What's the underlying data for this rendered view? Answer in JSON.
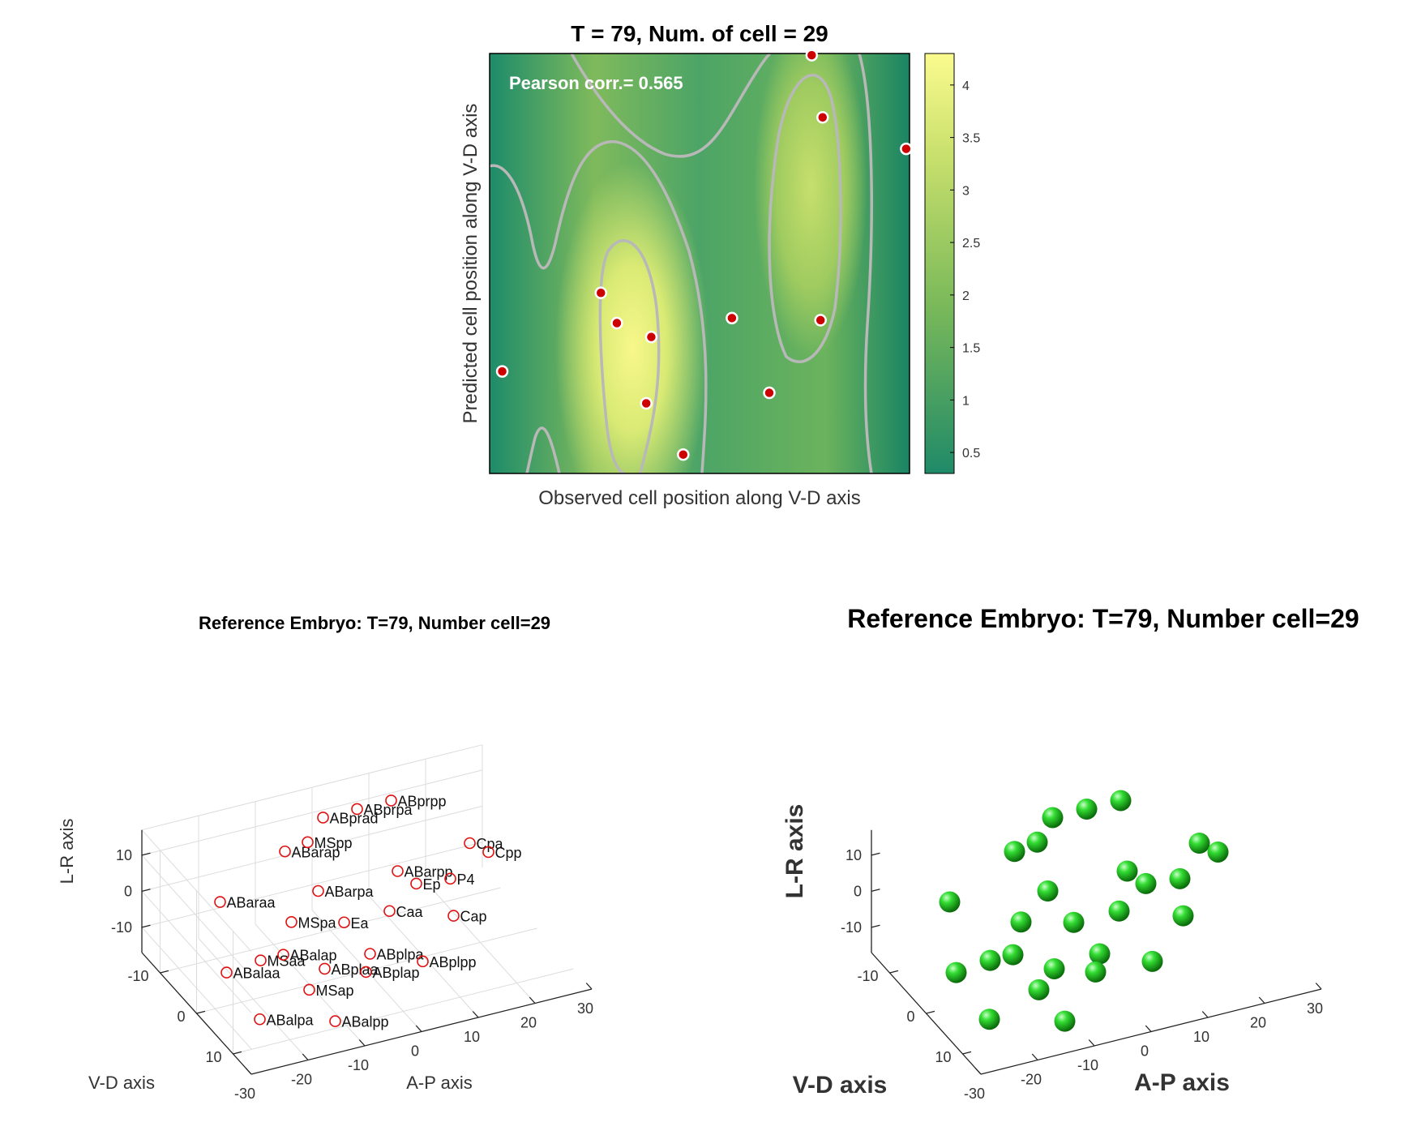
{
  "top_plot": {
    "title": "T = 79, Num. of cell = 29",
    "annotation": "Pearson corr.= 0.565",
    "xlabel": "Observed cell position along V-D axis",
    "ylabel": "Predicted cell position along V-D axis",
    "colorbar_ticks": [
      "0.5",
      "1",
      "1.5",
      "2",
      "2.5",
      "3",
      "3.5",
      "4"
    ],
    "colors": {
      "low": "#1f8a68",
      "mid": "#8fc45a",
      "high": "#f5f58a",
      "contour": "#b0b0b0",
      "point": "#cc0000"
    }
  },
  "bottom_left": {
    "title": "Reference Embryo: T=79, Number cell=29",
    "zlabel": "L-R axis",
    "ylabel": "V-D axis",
    "xlabel": "A-P axis",
    "z_ticks": [
      "10",
      "0",
      "-10"
    ],
    "y_ticks": [
      "-10",
      "0",
      "10"
    ],
    "x_ticks": [
      "-30",
      "-20",
      "-10",
      "0",
      "10",
      "20",
      "30"
    ],
    "cell_labels": [
      "ABprad",
      "ABprpa",
      "ABprpp",
      "ABarap",
      "MSpp",
      "ABaraa",
      "ABarpa",
      "ABarpp",
      "Cpa",
      "Cpp",
      "Ep",
      "P4",
      "MSpa",
      "Ea",
      "Caa",
      "ABalaa",
      "MSaa",
      "ABalap",
      "Cap",
      "ABplpa",
      "ABplaa",
      "ABplap",
      "MSap",
      "ABplpp",
      "ABalpa",
      "ABalpp"
    ]
  },
  "bottom_right": {
    "title": "Reference Embryo: T=79, Number cell=29",
    "zlabel": "L-R axis",
    "ylabel": "V-D axis",
    "xlabel": "A-P axis",
    "z_ticks": [
      "10",
      "0",
      "-10"
    ],
    "y_ticks": [
      "-10",
      "0",
      "10"
    ],
    "x_ticks": [
      "-30",
      "-20",
      "-10",
      "0",
      "10",
      "20",
      "30"
    ],
    "sphere_color": "#22cc22"
  },
  "chart_data": [
    {
      "type": "heatmap",
      "title": "T = 79, Num. of cell = 29",
      "xlabel": "Observed cell position along V-D axis",
      "ylabel": "Predicted cell position along V-D axis",
      "colorbar_range": [
        0.3,
        4.3
      ],
      "pearson_corr": 0.565,
      "points": [
        {
          "x": 0.767,
          "y": 0.996
        },
        {
          "x": 0.793,
          "y": 0.848
        },
        {
          "x": 0.992,
          "y": 0.773
        },
        {
          "x": 0.265,
          "y": 0.43
        },
        {
          "x": 0.303,
          "y": 0.358
        },
        {
          "x": 0.385,
          "y": 0.325
        },
        {
          "x": 0.577,
          "y": 0.37
        },
        {
          "x": 0.788,
          "y": 0.365
        },
        {
          "x": 0.03,
          "y": 0.243
        },
        {
          "x": 0.373,
          "y": 0.167
        },
        {
          "x": 0.666,
          "y": 0.192
        },
        {
          "x": 0.461,
          "y": 0.045
        }
      ]
    },
    {
      "type": "scatter",
      "title": "Reference Embryo: T=79, Number cell=29",
      "xlabel": "A-P axis",
      "ylabel": "V-D axis",
      "zlabel": "L-R axis",
      "points": [
        {
          "label": "ABprad",
          "ap": 0,
          "vd": -12,
          "lr": 12
        },
        {
          "label": "ABprpa",
          "ap": 6,
          "vd": -12,
          "lr": 12
        },
        {
          "label": "ABprpp",
          "ap": 12,
          "vd": -12,
          "lr": 12
        },
        {
          "label": "ABarap",
          "ap": -8,
          "vd": -10,
          "lr": 8
        },
        {
          "label": "MSpp",
          "ap": -4,
          "vd": -10,
          "lr": 9
        },
        {
          "label": "ABaraa",
          "ap": -22,
          "vd": -6,
          "lr": 4
        },
        {
          "label": "ABarpa",
          "ap": -6,
          "vd": -4,
          "lr": 3
        },
        {
          "label": "ABarpp",
          "ap": 8,
          "vd": -4,
          "lr": 3
        },
        {
          "label": "Cpa",
          "ap": 22,
          "vd": -6,
          "lr": 3
        },
        {
          "label": "Cpp",
          "ap": 24,
          "vd": -4,
          "lr": 2
        },
        {
          "label": "Ep",
          "ap": 10,
          "vd": -2,
          "lr": 1
        },
        {
          "label": "P4",
          "ap": 16,
          "vd": -2,
          "lr": 0
        },
        {
          "label": "MSpa",
          "ap": -12,
          "vd": -2,
          "lr": -1
        },
        {
          "label": "Ea",
          "ap": -4,
          "vd": 0,
          "lr": -2
        },
        {
          "label": "Caa",
          "ap": 4,
          "vd": 0,
          "lr": -2
        },
        {
          "label": "ABalaa",
          "ap": -26,
          "vd": 2,
          "lr": -5
        },
        {
          "label": "MSaa",
          "ap": -20,
          "vd": 2,
          "lr": -4
        },
        {
          "label": "ABalap",
          "ap": -16,
          "vd": 2,
          "lr": -4
        },
        {
          "label": "Cap",
          "ap": 14,
          "vd": 2,
          "lr": -5
        },
        {
          "label": "ABplpa",
          "ap": -2,
          "vd": 4,
          "lr": -7
        },
        {
          "label": "ABplaa",
          "ap": -10,
          "vd": 4,
          "lr": -8
        },
        {
          "label": "ABplap",
          "ap": -4,
          "vd": 6,
          "lr": -9
        },
        {
          "label": "MSap",
          "ap": -14,
          "vd": 6,
          "lr": -10
        },
        {
          "label": "ABplpp",
          "ap": 6,
          "vd": 6,
          "lr": -10
        },
        {
          "label": "ABalpa",
          "ap": -24,
          "vd": 8,
          "lr": -12
        },
        {
          "label": "ABalpp",
          "ap": -12,
          "vd": 10,
          "lr": -15
        }
      ]
    },
    {
      "type": "scatter",
      "title": "Reference Embryo: T=79, Number cell=29",
      "xlabel": "A-P axis",
      "ylabel": "V-D axis",
      "zlabel": "L-R axis",
      "note_points_same_as_left": true
    }
  ]
}
